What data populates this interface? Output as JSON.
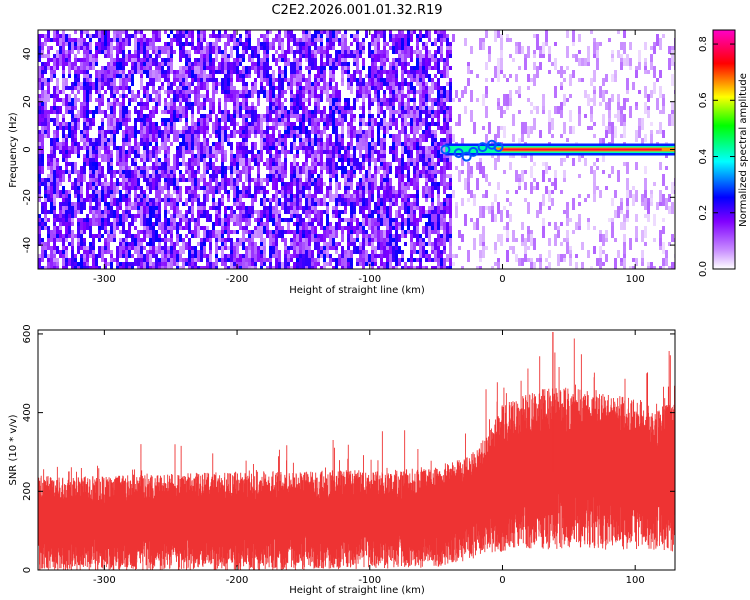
{
  "title": "C2E2.2026.001.01.32.R19",
  "chart_data": [
    {
      "type": "heatmap",
      "xlabel": "Height of straight line (km)",
      "ylabel": "Frequency (Hz)",
      "xlim": [
        -350,
        130
      ],
      "ylim": [
        -50,
        50
      ],
      "x_ticks": [
        -300,
        -200,
        -100,
        0,
        100
      ],
      "x_tick_labels": [
        "-300",
        "-200",
        "-100",
        "0",
        "100"
      ],
      "y_ticks": [
        -40,
        -20,
        0,
        20,
        40
      ],
      "y_tick_labels": [
        "-40",
        "-20",
        "0",
        "20",
        "40"
      ],
      "colorbar": {
        "label": "Normalized spectral amplitude",
        "range": [
          0.0,
          0.85
        ],
        "ticks": [
          0.0,
          0.2,
          0.4,
          0.6,
          0.8
        ],
        "tick_labels": [
          "0.0",
          "0.2",
          "0.4",
          "0.6",
          "0.8"
        ],
        "colors": [
          "#ffffff",
          "#8a2be2",
          "#0000ff",
          "#00ffff",
          "#00ff00",
          "#ffff00",
          "#ff0000",
          "#ff00ff"
        ]
      },
      "noise_level_left": 0.18,
      "noise_level_right": 0.05,
      "transition_x": -40,
      "signal": {
        "frequency_hz": 0,
        "start_x": -43,
        "end_x": 130,
        "amplitude": 0.75
      }
    },
    {
      "type": "line",
      "xlabel": "Height of straight line (km)",
      "ylabel": "SNR (10 * v/v)",
      "xlim": [
        -350,
        130
      ],
      "ylim": [
        0,
        610
      ],
      "x_ticks": [
        -300,
        -200,
        -100,
        0,
        100
      ],
      "x_tick_labels": [
        "-300",
        "-200",
        "-100",
        "0",
        "100"
      ],
      "y_ticks": [
        0,
        200,
        400,
        600
      ],
      "y_tick_labels": [
        "0",
        "200",
        "400",
        "600"
      ],
      "color": "#ee3333",
      "envelope": {
        "x": [
          -350,
          -300,
          -200,
          -100,
          -50,
          -25,
          -10,
          0,
          20,
          40,
          60,
          100,
          130
        ],
        "mean": [
          130,
          130,
          135,
          140,
          145,
          170,
          210,
          250,
          270,
          280,
          275,
          260,
          250
        ],
        "spread": [
          110,
          110,
          115,
          115,
          115,
          120,
          140,
          170,
          180,
          190,
          185,
          175,
          170
        ]
      },
      "peak": {
        "x": 38,
        "y": 605
      }
    }
  ]
}
